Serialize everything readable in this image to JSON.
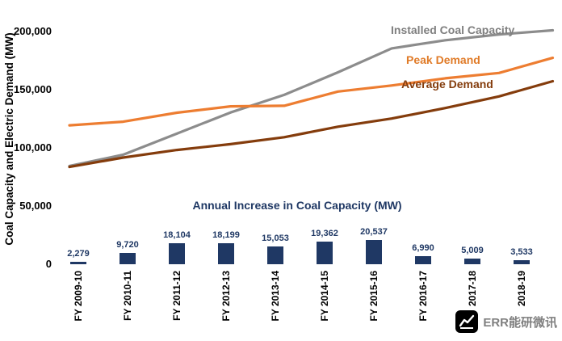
{
  "chart_data": [
    {
      "type": "line",
      "title": "",
      "ylabel": "Coal Capacity and Electric Demand (MW)",
      "ylim": [
        0,
        200000
      ],
      "yticks": [
        0,
        50000,
        100000,
        150000,
        200000
      ],
      "ytick_labels": [
        "0",
        "50,000",
        "100,000",
        "150,000",
        "200,000"
      ],
      "grid": "off",
      "legend_position": "inline-labels",
      "categories": [
        "FY 2009-10",
        "FY 2010-11",
        "FY 2011-12",
        "FY 2012-13",
        "FY 2013-14",
        "FY 2014-15",
        "FY 2015-16",
        "FY 2016-17",
        "FY 2017-18",
        "FY 2018-19"
      ],
      "series": [
        {
          "name": "Installed Coal Capacity",
          "color": "#8C8C8C",
          "label_color": "#7F7F7F",
          "values": [
            84198,
            93918,
            112022,
            130221,
            145273,
            164636,
            185173,
            192163,
            197171,
            200704
          ]
        },
        {
          "name": "Peak Demand",
          "color": "#ED7D31",
          "label_color": "#E07B28",
          "values": [
            119166,
            122287,
            130006,
            135453,
            135918,
            148166,
            153366,
            159542,
            164066,
            177022
          ]
        },
        {
          "name": "Average Demand",
          "color": "#843C0C",
          "label_color": "#843C0C",
          "values": [
            83500,
            91500,
            98000,
            103000,
            109000,
            118000,
            125000,
            134000,
            144000,
            157000
          ]
        }
      ]
    },
    {
      "type": "bar",
      "title": "Annual Increase in Coal Capacity (MW)",
      "color": "#1F3864",
      "categories": [
        "FY 2009-10",
        "FY 2010-11",
        "FY 2011-12",
        "FY 2012-13",
        "FY 2013-14",
        "FY 2014-15",
        "FY 2015-16",
        "FY 2016-17",
        "FY 2017-18",
        "FY 2018-19"
      ],
      "values": [
        2279,
        9720,
        18104,
        18199,
        15053,
        19362,
        20537,
        6990,
        5009,
        3533
      ],
      "value_labels": [
        "2,279",
        "9,720",
        "18,104",
        "18,199",
        "15,053",
        "19,362",
        "20,537",
        "6,990",
        "5,009",
        "3,533"
      ]
    }
  ],
  "watermark": {
    "text": "ERR能研微讯"
  }
}
